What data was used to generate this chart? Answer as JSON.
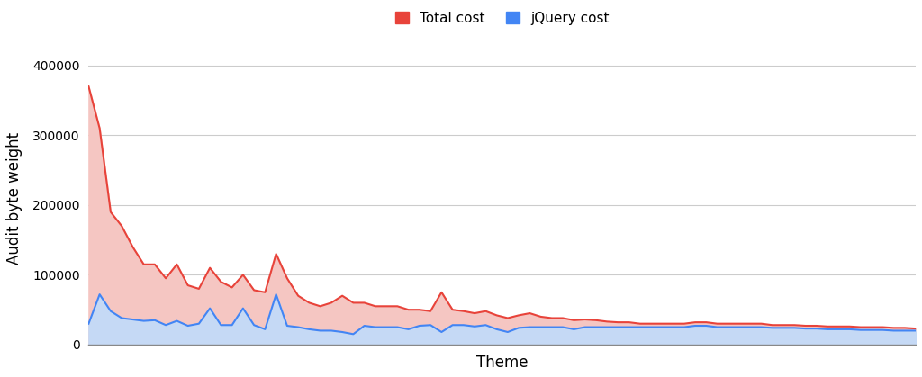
{
  "title": "",
  "xlabel": "Theme",
  "ylabel": "Audit byte weight",
  "legend_labels": [
    "Total cost",
    "jQuery cost"
  ],
  "total_cost": [
    370000,
    310000,
    190000,
    170000,
    140000,
    115000,
    115000,
    95000,
    115000,
    85000,
    80000,
    110000,
    90000,
    82000,
    100000,
    78000,
    75000,
    130000,
    95000,
    70000,
    60000,
    55000,
    60000,
    70000,
    60000,
    60000,
    55000,
    55000,
    55000,
    50000,
    50000,
    48000,
    75000,
    50000,
    48000,
    45000,
    48000,
    42000,
    38000,
    42000,
    45000,
    40000,
    38000,
    38000,
    35000,
    36000,
    35000,
    33000,
    32000,
    32000,
    30000,
    30000,
    30000,
    30000,
    30000,
    32000,
    32000,
    30000,
    30000,
    30000,
    30000,
    30000,
    28000,
    28000,
    28000,
    27000,
    27000,
    26000,
    26000,
    26000,
    25000,
    25000,
    25000,
    24000,
    24000,
    23000
  ],
  "jquery_cost": [
    30000,
    72000,
    48000,
    38000,
    36000,
    34000,
    35000,
    28000,
    34000,
    27000,
    30000,
    52000,
    28000,
    28000,
    52000,
    28000,
    22000,
    72000,
    27000,
    25000,
    22000,
    20000,
    20000,
    18000,
    15000,
    27000,
    25000,
    25000,
    25000,
    22000,
    27000,
    28000,
    18000,
    28000,
    28000,
    26000,
    28000,
    22000,
    18000,
    24000,
    25000,
    25000,
    25000,
    25000,
    22000,
    25000,
    25000,
    25000,
    25000,
    25000,
    25000,
    25000,
    25000,
    25000,
    25000,
    27000,
    27000,
    25000,
    25000,
    25000,
    25000,
    25000,
    24000,
    24000,
    24000,
    23000,
    23000,
    22000,
    22000,
    22000,
    21000,
    21000,
    21000,
    20000,
    20000,
    20000
  ],
  "total_color": "#e8433a",
  "jquery_color": "#4285f4",
  "total_fill_color": "#f5c6c2",
  "jquery_fill_color": "#c5d9f5",
  "background_color": "#ffffff",
  "grid_color": "#cccccc",
  "ylim": [
    0,
    420000
  ],
  "yticks": [
    0,
    100000,
    200000,
    300000,
    400000
  ],
  "figsize": [
    10.24,
    4.19
  ],
  "dpi": 100
}
